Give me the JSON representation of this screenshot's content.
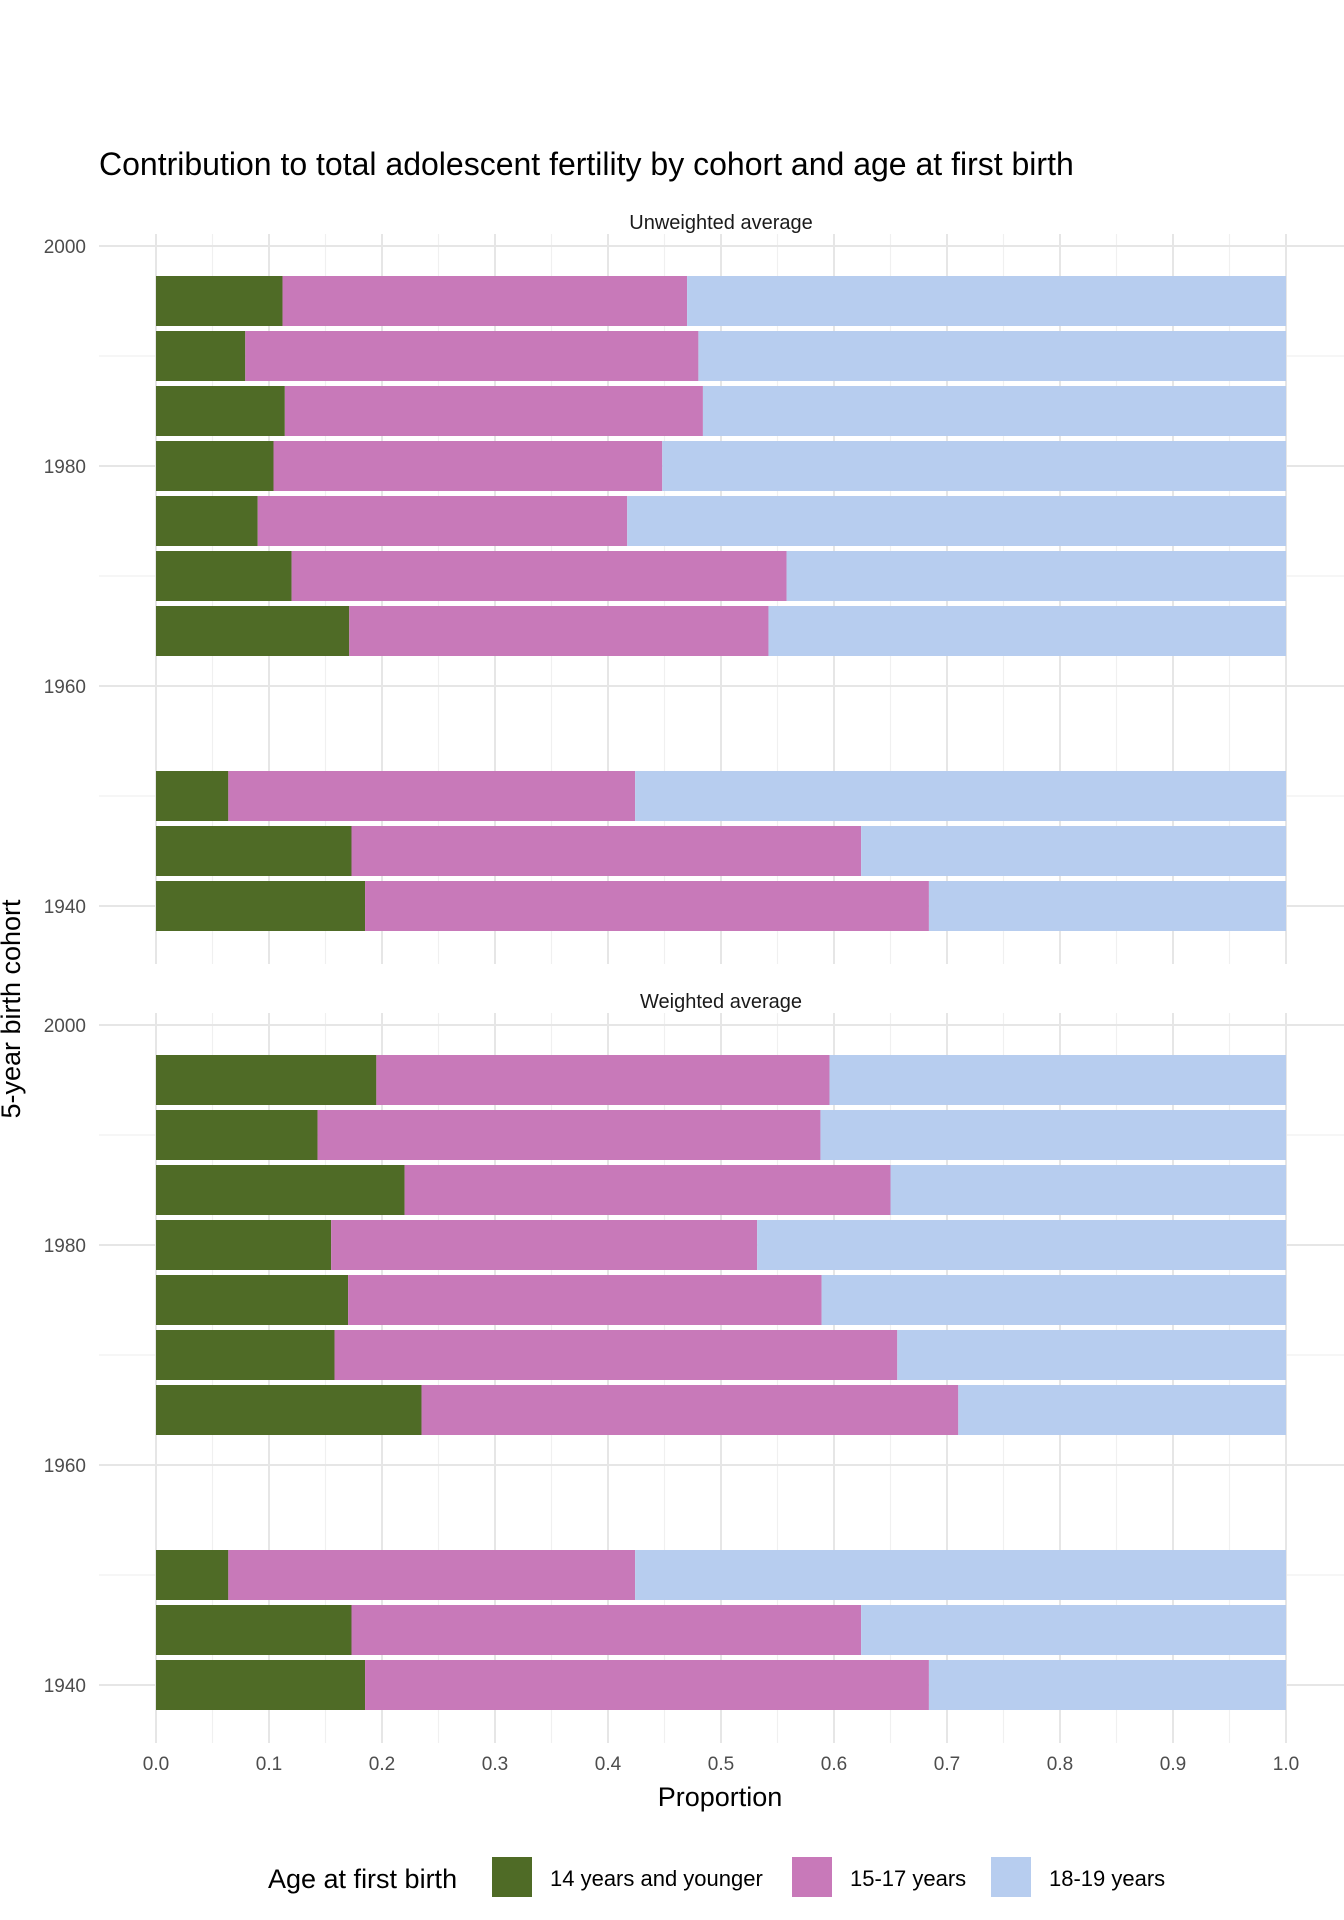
{
  "chart_data": {
    "type": "bar",
    "orientation": "horizontal",
    "stacked": true,
    "title": "Contribution to total adolescent fertility by cohort and age at first birth",
    "xlabel": "Proportion",
    "ylabel": "5-year birth cohort",
    "xlim": [
      0,
      1
    ],
    "ylim": [
      1935,
      2000
    ],
    "x_ticks": [
      "0.0",
      "0.1",
      "0.2",
      "0.3",
      "0.4",
      "0.5",
      "0.6",
      "0.7",
      "0.8",
      "0.9",
      "1.0"
    ],
    "y_ticks": [
      "1940",
      "1960",
      "1980",
      "2000"
    ],
    "grid": true,
    "legend": {
      "title": "Age at first birth",
      "position": "bottom",
      "entries": [
        "14 years and younger",
        "15-17 years",
        "18-19 years"
      ]
    },
    "colors": {
      "14 years and younger": "#4f6b26",
      "15-17 years": "#c879b9",
      "18-19 years": "#b7cdef",
      "grid": "#e6e6e6",
      "text": "#000000",
      "tick_text": "#4d4d4d"
    },
    "panels": [
      {
        "title": "Unweighted average",
        "categories": [
          1940,
          1945,
          1950,
          1965,
          1970,
          1975,
          1980,
          1985,
          1990,
          1995
        ],
        "series": [
          {
            "name": "14 years and younger",
            "values": [
              0.185,
              0.173,
              0.064,
              0.171,
              0.12,
              0.09,
              0.104,
              0.114,
              0.079,
              0.112
            ]
          },
          {
            "name": "15-17 years",
            "values": [
              0.499,
              0.451,
              0.36,
              0.371,
              0.438,
              0.327,
              0.344,
              0.37,
              0.401,
              0.358
            ]
          },
          {
            "name": "18-19 years",
            "values": [
              0.316,
              0.376,
              0.576,
              0.458,
              0.442,
              0.583,
              0.552,
              0.516,
              0.52,
              0.53
            ]
          }
        ]
      },
      {
        "title": "Weighted average",
        "categories": [
          1940,
          1945,
          1950,
          1965,
          1970,
          1975,
          1980,
          1985,
          1990,
          1995
        ],
        "series": [
          {
            "name": "14 years and younger",
            "values": [
              0.185,
              0.173,
              0.064,
              0.235,
              0.158,
              0.17,
              0.155,
              0.22,
              0.143,
              0.195
            ]
          },
          {
            "name": "15-17 years",
            "values": [
              0.499,
              0.451,
              0.36,
              0.475,
              0.498,
              0.419,
              0.377,
              0.43,
              0.445,
              0.401
            ]
          },
          {
            "name": "18-19 years",
            "values": [
              0.316,
              0.376,
              0.576,
              0.29,
              0.344,
              0.411,
              0.468,
              0.35,
              0.412,
              0.404
            ]
          }
        ]
      }
    ]
  }
}
